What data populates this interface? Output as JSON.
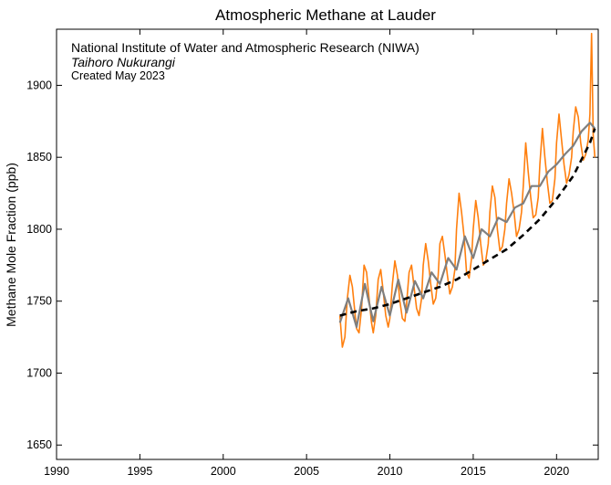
{
  "chart_data": {
    "type": "line",
    "title": "Atmospheric Methane at Lauder",
    "annotations": {
      "line1": "National Institute of Water and Atmospheric Research (NIWA)",
      "line2": "Taihoro Nukurangi",
      "line3": "Created May 2023"
    },
    "xlabel": "",
    "ylabel": "Methane Mole Fraction (ppb)",
    "xlim": [
      1990,
      2022.5
    ],
    "ylim": [
      1640,
      1939
    ],
    "xticks": [
      1990,
      1995,
      2000,
      2005,
      2010,
      2015,
      2020
    ],
    "yticks": [
      1650,
      1700,
      1750,
      1800,
      1850,
      1900
    ],
    "grid": false,
    "colors": {
      "observations": "#ff7f0e",
      "smoothed": "#7f7f7f",
      "trend": "#000000"
    },
    "series": [
      {
        "kind": "observations",
        "x": [
          2007.0,
          2007.15,
          2007.3,
          2007.45,
          2007.6,
          2007.75,
          2007.9,
          2008.0,
          2008.15,
          2008.3,
          2008.45,
          2008.6,
          2008.75,
          2008.9,
          2009.0,
          2009.15,
          2009.3,
          2009.45,
          2009.6,
          2009.75,
          2009.9,
          2010.0,
          2010.15,
          2010.3,
          2010.45,
          2010.6,
          2010.75,
          2010.9,
          2011.0,
          2011.15,
          2011.3,
          2011.45,
          2011.6,
          2011.75,
          2011.9,
          2012.0,
          2012.15,
          2012.3,
          2012.45,
          2012.6,
          2012.75,
          2012.9,
          2013.0,
          2013.15,
          2013.3,
          2013.45,
          2013.6,
          2013.75,
          2013.9,
          2014.0,
          2014.15,
          2014.3,
          2014.45,
          2014.6,
          2014.75,
          2014.9,
          2015.0,
          2015.15,
          2015.3,
          2015.45,
          2015.6,
          2015.75,
          2015.9,
          2016.0,
          2016.15,
          2016.3,
          2016.45,
          2016.6,
          2016.75,
          2016.9,
          2017.0,
          2017.15,
          2017.3,
          2017.45,
          2017.6,
          2017.75,
          2017.9,
          2018.0,
          2018.15,
          2018.3,
          2018.45,
          2018.6,
          2018.75,
          2018.9,
          2019.0,
          2019.15,
          2019.3,
          2019.45,
          2019.6,
          2019.75,
          2019.9,
          2020.0,
          2020.15,
          2020.3,
          2020.45,
          2020.6,
          2020.75,
          2020.9,
          2021.0,
          2021.15,
          2021.3,
          2021.45,
          2021.6,
          2021.75,
          2021.9,
          2022.0,
          2022.1,
          2022.2,
          2022.3
        ],
        "y": [
          1740,
          1718,
          1725,
          1752,
          1768,
          1760,
          1742,
          1731,
          1728,
          1745,
          1775,
          1770,
          1752,
          1735,
          1728,
          1740,
          1765,
          1772,
          1757,
          1740,
          1732,
          1738,
          1762,
          1778,
          1768,
          1750,
          1738,
          1736,
          1748,
          1770,
          1775,
          1760,
          1745,
          1740,
          1752,
          1775,
          1790,
          1778,
          1762,
          1748,
          1752,
          1768,
          1790,
          1795,
          1782,
          1768,
          1755,
          1760,
          1772,
          1800,
          1825,
          1812,
          1795,
          1770,
          1766,
          1780,
          1800,
          1820,
          1808,
          1790,
          1775,
          1778,
          1790,
          1812,
          1830,
          1822,
          1800,
          1785,
          1788,
          1800,
          1818,
          1835,
          1825,
          1812,
          1795,
          1800,
          1812,
          1830,
          1860,
          1840,
          1822,
          1808,
          1810,
          1822,
          1845,
          1870,
          1850,
          1832,
          1818,
          1820,
          1835,
          1860,
          1880,
          1862,
          1845,
          1832,
          1838,
          1850,
          1868,
          1885,
          1878,
          1860,
          1848,
          1852,
          1862,
          1880,
          1936,
          1865,
          1850
        ]
      },
      {
        "kind": "smoothed",
        "x": [
          2007.0,
          2007.5,
          2008.0,
          2008.5,
          2009.0,
          2009.5,
          2010.0,
          2010.5,
          2011.0,
          2011.5,
          2012.0,
          2012.5,
          2013.0,
          2013.5,
          2014.0,
          2014.5,
          2015.0,
          2015.5,
          2016.0,
          2016.5,
          2017.0,
          2017.5,
          2018.0,
          2018.5,
          2019.0,
          2019.5,
          2020.0,
          2020.5,
          2021.0,
          2021.5,
          2022.0,
          2022.3
        ],
        "y": [
          1735,
          1752,
          1732,
          1762,
          1736,
          1760,
          1740,
          1765,
          1742,
          1764,
          1752,
          1770,
          1762,
          1780,
          1772,
          1795,
          1780,
          1800,
          1795,
          1808,
          1805,
          1815,
          1818,
          1830,
          1830,
          1840,
          1845,
          1852,
          1858,
          1868,
          1874,
          1870
        ]
      },
      {
        "kind": "trend",
        "x": [
          2007.0,
          2008.0,
          2009.0,
          2010.0,
          2011.0,
          2012.0,
          2013.0,
          2014.0,
          2015.0,
          2016.0,
          2017.0,
          2018.0,
          2019.0,
          2020.0,
          2021.0,
          2022.0,
          2022.3
        ],
        "y": [
          1740,
          1743,
          1745,
          1748,
          1752,
          1756,
          1760,
          1765,
          1772,
          1779,
          1786,
          1796,
          1807,
          1821,
          1837,
          1860,
          1870
        ]
      }
    ]
  }
}
